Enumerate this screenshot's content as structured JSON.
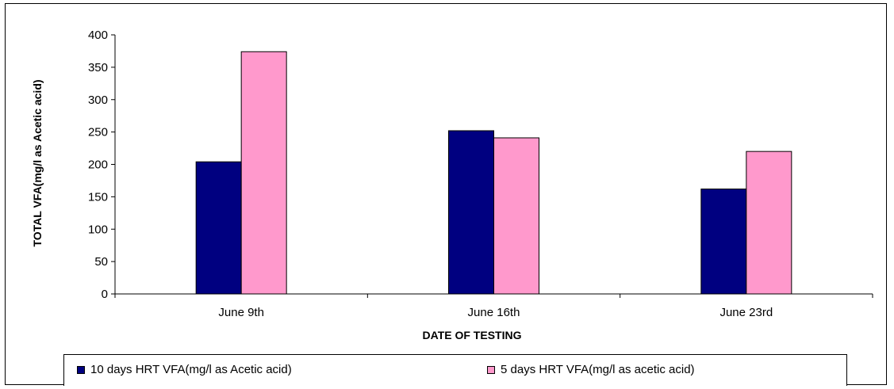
{
  "chart_data": {
    "type": "bar",
    "categories": [
      "June 9th",
      "June 16th",
      "June 23rd"
    ],
    "series": [
      {
        "name": "10 days HRT VFA(mg/l as Acetic acid)",
        "values": [
          204,
          252,
          162
        ],
        "color": "#000080"
      },
      {
        "name": "5 days HRT VFA(mg/l as acetic acid)",
        "values": [
          374,
          241,
          220
        ],
        "color": "#FF99CC"
      }
    ],
    "xlabel": "DATE OF  TESTING",
    "ylabel": "TOTAL VFA(mg/l as Acetic acid)",
    "ylim": [
      0,
      400
    ],
    "yticks": [
      "0",
      "50",
      "100",
      "150",
      "200",
      "250",
      "300",
      "350",
      "400"
    ],
    "grid": false,
    "legend_position": "bottom"
  }
}
